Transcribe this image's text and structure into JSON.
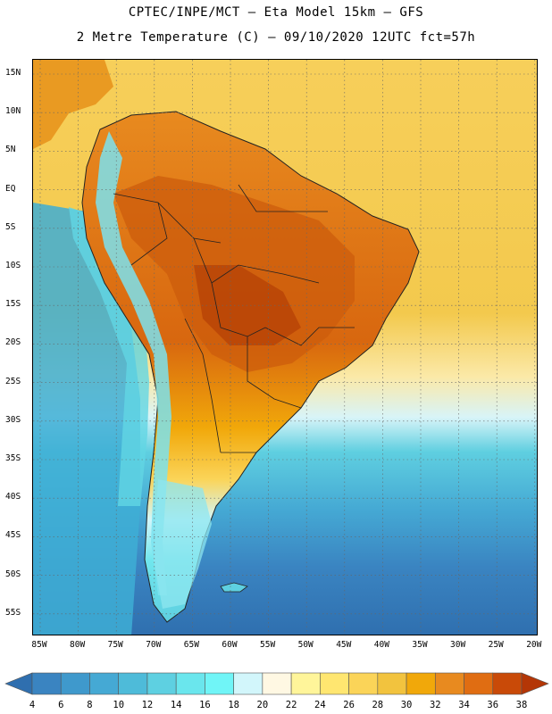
{
  "header": {
    "line1": "CPTEC/INPE/MCT –  Eta Model 15km – GFS",
    "line2": "2 Metre Temperature (C) – 09/10/2020 12UTC fct=57h"
  },
  "map": {
    "lat_labels": [
      "15N",
      "10N",
      "5N",
      "EQ",
      "5S",
      "10S",
      "15S",
      "20S",
      "25S",
      "30S",
      "35S",
      "40S",
      "45S",
      "50S",
      "55S"
    ],
    "lon_labels": [
      "85W",
      "80W",
      "75W",
      "70W",
      "65W",
      "60W",
      "55W",
      "50W",
      "45W",
      "40W",
      "35W",
      "30W",
      "25W",
      "20W"
    ],
    "ocean_color": "#3d8fc4",
    "land_color": "#e8911e",
    "hot_color": "#c95a0a"
  },
  "colorbar": {
    "labels": [
      "4",
      "6",
      "8",
      "10",
      "12",
      "14",
      "16",
      "18",
      "20",
      "22",
      "24",
      "26",
      "28",
      "30",
      "32",
      "34",
      "36",
      "38"
    ],
    "colors": [
      "#2f6faf",
      "#3a84c1",
      "#3f99cc",
      "#45a9d4",
      "#4ebbd9",
      "#5ed0e1",
      "#6ae6ed",
      "#70f5f7",
      "#d2f6fb",
      "#fff8e3",
      "#fff59a",
      "#ffe670",
      "#fbd458",
      "#f2c33e",
      "#f1a80a",
      "#e88a1f",
      "#e06d12",
      "#c94a08",
      "#b43606"
    ]
  }
}
